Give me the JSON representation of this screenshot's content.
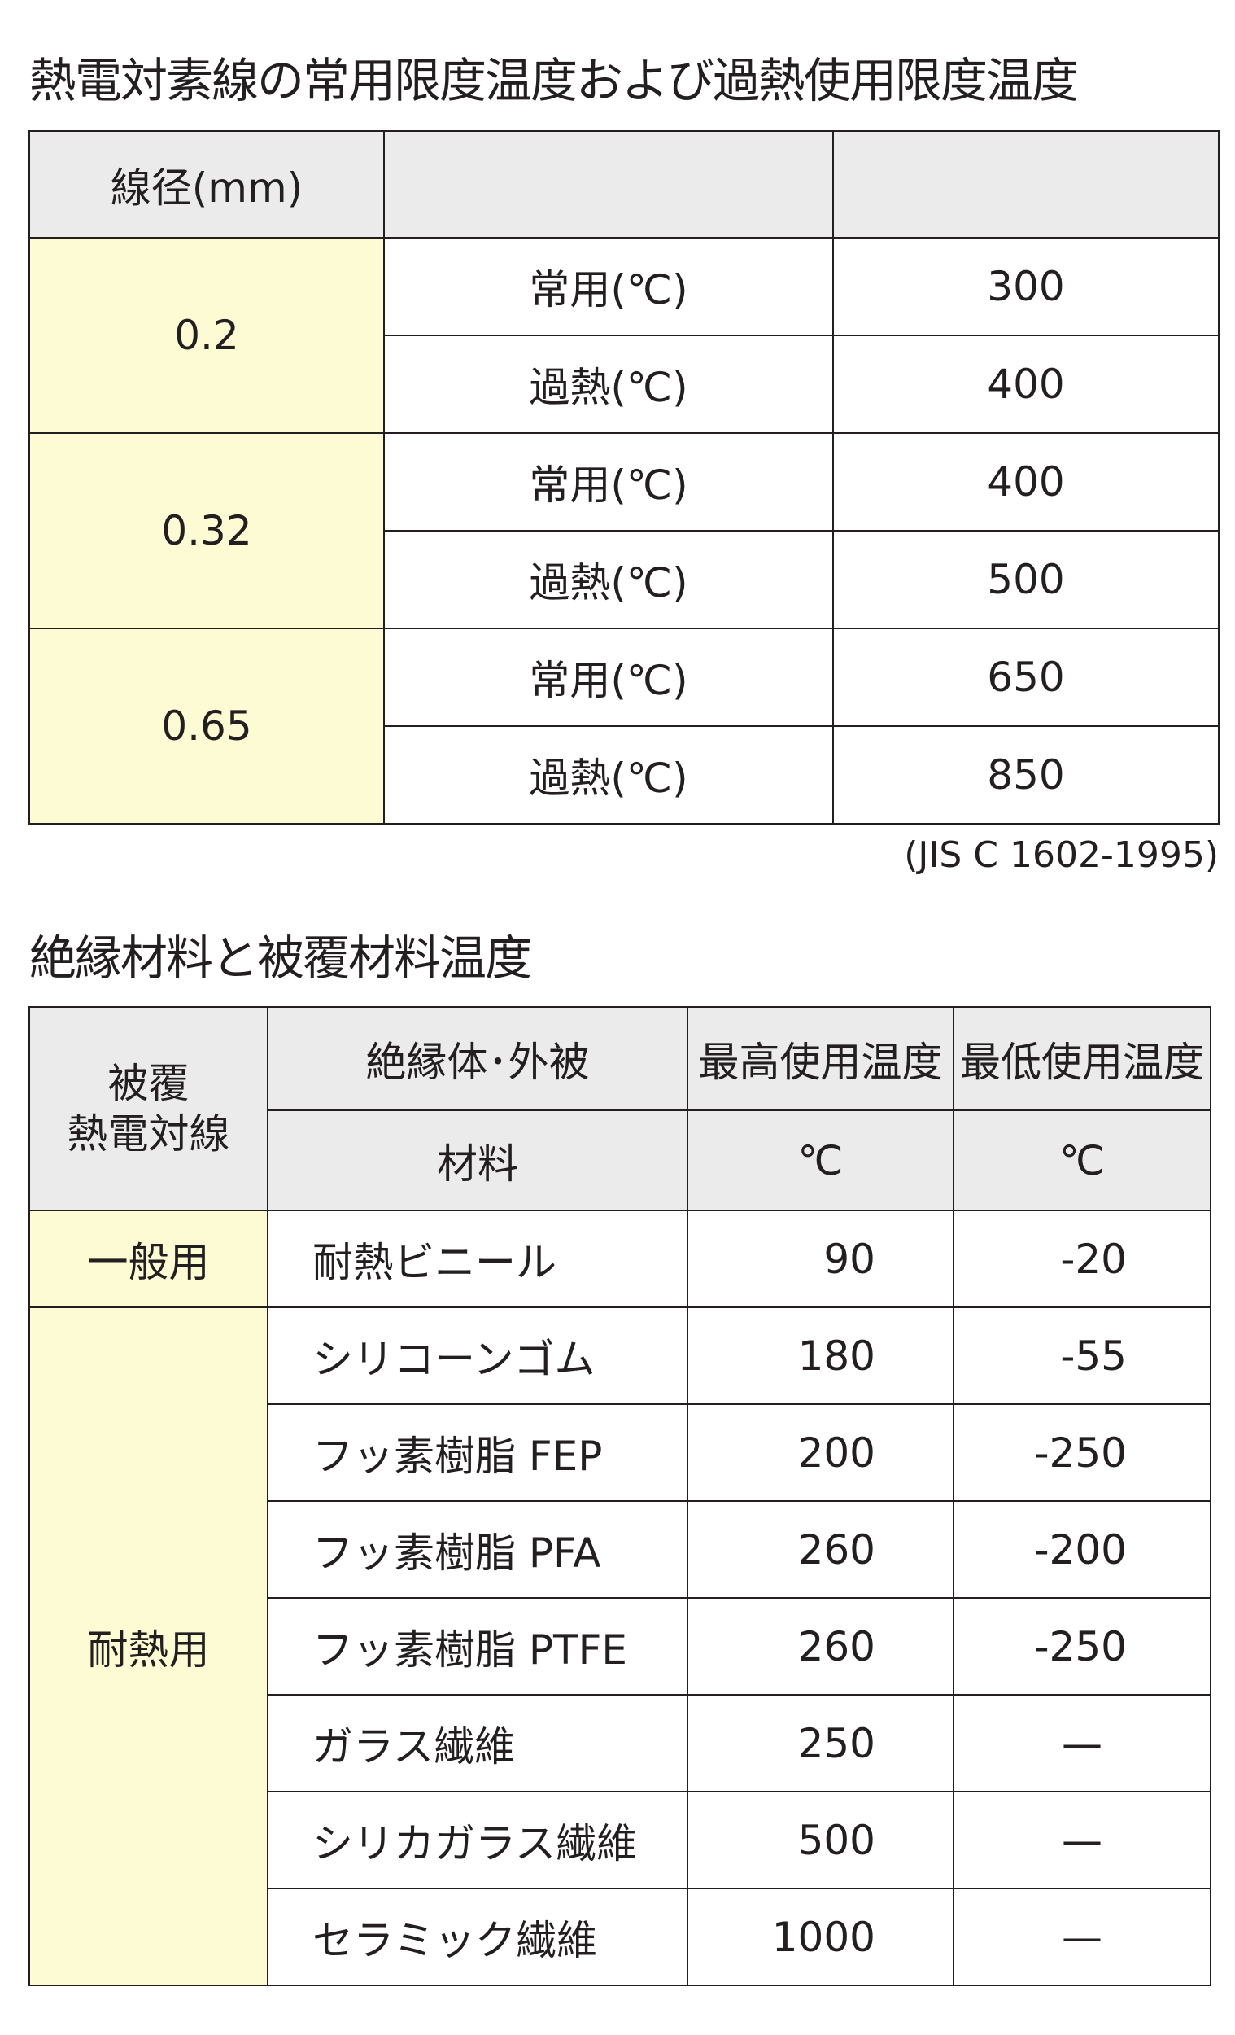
{
  "table1": {
    "title": "熱電対素線の常用限度温度および過熱使用限度温度",
    "header": [
      "線径(mm)",
      "",
      ""
    ],
    "groups": [
      {
        "diameter": "0.2",
        "rows": [
          {
            "label": "常用(℃)",
            "value": "300"
          },
          {
            "label": "過熱(℃)",
            "value": "400"
          }
        ]
      },
      {
        "diameter": "0.32",
        "rows": [
          {
            "label": "常用(℃)",
            "value": "400"
          },
          {
            "label": "過熱(℃)",
            "value": "500"
          }
        ]
      },
      {
        "diameter": "0.65",
        "rows": [
          {
            "label": "常用(℃)",
            "value": "650"
          },
          {
            "label": "過熱(℃)",
            "value": "850"
          }
        ]
      }
    ],
    "note": "(JIS C 1602-1995)"
  },
  "table2": {
    "title": "絶縁材料と被覆材料温度",
    "header": {
      "col1_line1": "被覆",
      "col1_line2": "熱電対線",
      "col2_top": "絶縁体･外被",
      "col2_bottom": "材料",
      "col3_top": "最高使用温度",
      "col3_bottom": "℃",
      "col4_top": "最低使用温度",
      "col4_bottom": "℃"
    },
    "categories": [
      "一般用",
      "耐熱用"
    ],
    "rows": [
      {
        "material": "耐熱ビニール",
        "max": "90",
        "min": "-20"
      },
      {
        "material": "シリコーンゴム",
        "max": "180",
        "min": "-55"
      },
      {
        "material": "フッ素樹脂 FEP",
        "max": "200",
        "min": "-250"
      },
      {
        "material": "フッ素樹脂 PFA",
        "max": "260",
        "min": "-200"
      },
      {
        "material": "フッ素樹脂 PTFE",
        "max": "260",
        "min": "-250"
      },
      {
        "material": "ガラス繊維",
        "max": "250",
        "min": "—"
      },
      {
        "material": "シリカガラス繊維",
        "max": "500",
        "min": "—"
      },
      {
        "material": "セラミック繊維",
        "max": "1000",
        "min": "—"
      }
    ]
  },
  "colors": {
    "header_bg": "#ebebeb",
    "category_bg": "#fdfbd3",
    "text": "#231f20"
  }
}
